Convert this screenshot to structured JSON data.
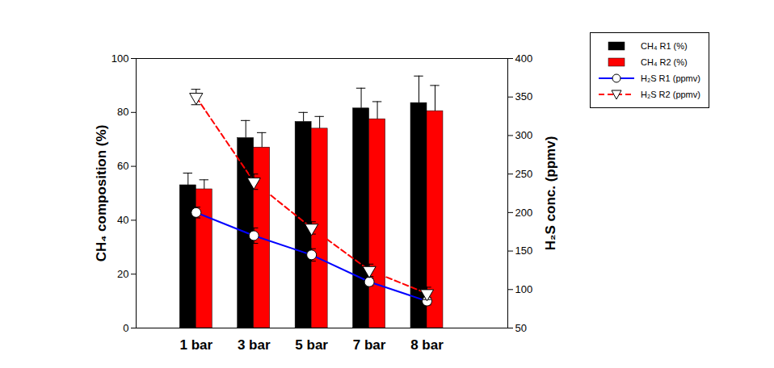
{
  "chart_data": {
    "type": "bar",
    "categories": [
      "1 bar",
      "3 bar",
      "5 bar",
      "7 bar",
      "8 bar"
    ],
    "y_label": "CH₄ composition (%)",
    "y2_label": "H₂S conc. (ppmv)",
    "ylim": [
      0,
      100
    ],
    "yticks": [
      0,
      20,
      40,
      60,
      80,
      100
    ],
    "y2lim": [
      50,
      400
    ],
    "y2ticks": [
      50,
      100,
      150,
      200,
      250,
      300,
      350,
      400
    ],
    "legend": "upper right",
    "series": [
      {
        "name": "CH₄ R1 (%)",
        "type": "bar",
        "color": "#000000",
        "values": [
          53,
          70.5,
          76.5,
          81.5,
          83.5
        ],
        "errors": [
          4.5,
          6.5,
          3.5,
          7.5,
          10
        ]
      },
      {
        "name": "CH₄ R2 (%)",
        "type": "bar",
        "color": "#ff0000",
        "values": [
          51.5,
          67,
          74,
          77.5,
          80.5
        ],
        "errors": [
          3.5,
          5.5,
          4.5,
          6.5,
          9.5
        ]
      },
      {
        "name": "H₂S R1 (ppmv)",
        "type": "line",
        "axis": "y2",
        "color": "#0000ff",
        "marker": "circle",
        "line_style": "solid",
        "values": [
          200,
          170,
          145,
          110,
          85
        ],
        "errors": [
          7,
          10,
          8,
          5,
          5
        ]
      },
      {
        "name": "H₂S R2 (ppmv)",
        "type": "line",
        "axis": "y2",
        "color": "#ff0000",
        "marker": "triangle-down",
        "line_style": "dashed",
        "values": [
          350,
          240,
          180,
          125,
          95
        ],
        "errors": [
          10,
          10,
          8,
          8,
          8
        ]
      }
    ]
  }
}
